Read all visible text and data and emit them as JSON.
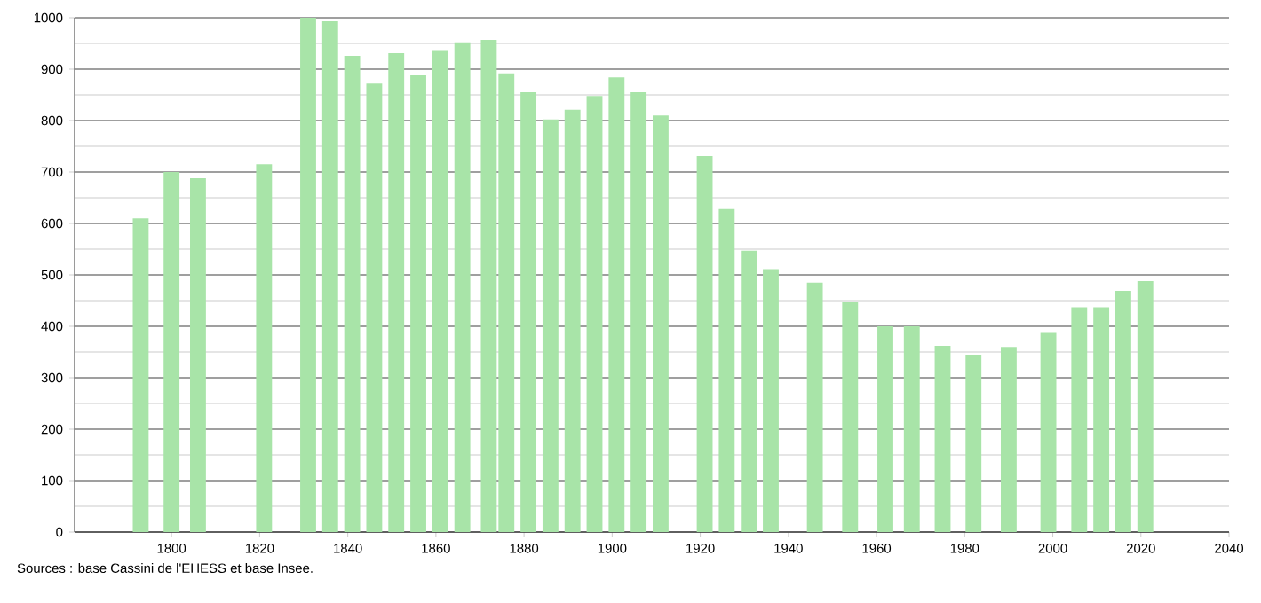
{
  "chart_data": {
    "type": "bar",
    "x": [
      1793,
      1800,
      1806,
      1821,
      1831,
      1836,
      1841,
      1846,
      1851,
      1856,
      1861,
      1866,
      1872,
      1876,
      1881,
      1886,
      1891,
      1896,
      1901,
      1906,
      1911,
      1921,
      1926,
      1931,
      1936,
      1946,
      1954,
      1962,
      1968,
      1975,
      1982,
      1990,
      1999,
      2006,
      2011,
      2016,
      2021
    ],
    "values": [
      610,
      700,
      688,
      715,
      1000,
      993,
      926,
      872,
      931,
      888,
      937,
      952,
      957,
      892,
      855,
      802,
      821,
      848,
      884,
      855,
      810,
      731,
      628,
      547,
      511,
      485,
      448,
      400,
      400,
      362,
      345,
      360,
      389,
      437,
      437,
      469,
      488
    ],
    "color": "#a8e4a8",
    "xlim": [
      1778,
      2040
    ],
    "xticks": [
      1800,
      1820,
      1840,
      1860,
      1880,
      1900,
      1920,
      1940,
      1960,
      1980,
      2000,
      2020,
      2040
    ],
    "ylim": [
      0,
      1000
    ],
    "yticks": [
      0,
      100,
      200,
      300,
      400,
      500,
      600,
      700,
      800,
      900,
      1000
    ],
    "grid": "y",
    "annotations": [
      "Sources : base Cassini de l'EHESS et base Insee."
    ]
  }
}
